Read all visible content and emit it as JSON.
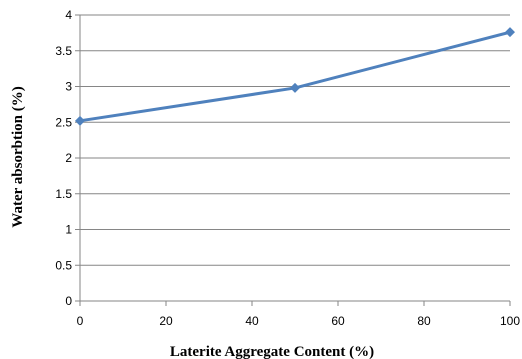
{
  "chart_data": {
    "type": "line",
    "title": "",
    "xlabel": "Laterite Aggregate Content  (%)",
    "ylabel": "Water absorbtion  (%)",
    "xlim": [
      0,
      100
    ],
    "ylim": [
      0,
      4
    ],
    "xticks": [
      "0",
      "20",
      "40",
      "60",
      "80",
      "100"
    ],
    "yticks": [
      "0",
      "0.5",
      "1",
      "1.5",
      "2",
      "2.5",
      "3",
      "3.5",
      "4"
    ],
    "grid": "horizontal",
    "legend": "none",
    "series": [
      {
        "color": "#4F81BD",
        "marker": "diamond",
        "points": [
          {
            "x": 0,
            "y": 2.52
          },
          {
            "x": 50,
            "y": 2.98
          },
          {
            "x": 100,
            "y": 3.76
          }
        ]
      }
    ]
  }
}
